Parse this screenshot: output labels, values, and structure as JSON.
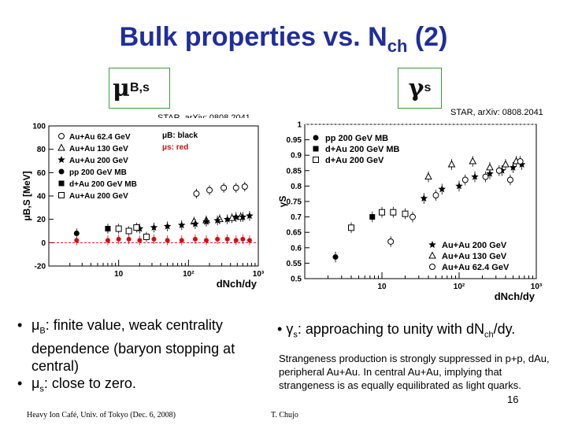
{
  "slide": {
    "title_main": "Bulk properties vs. N",
    "title_sub": "ch",
    "title_end": " (2)",
    "left_symbol": "μ",
    "left_symbol_sub": "B,s",
    "right_symbol": "γ",
    "right_symbol_sub": "s",
    "cite_left": "STAR, arXiv: 0808.2041",
    "cite_right": "STAR, arXiv: 0808.2041",
    "bullet1_sym": "μ",
    "bullet1_sub": "B",
    "bullet1_text": ": finite value, weak centrality dependence (baryon stopping at central)",
    "bullet2_sym": "μ",
    "bullet2_sub": "s",
    "bullet2_text": ": close to zero.",
    "right_bullet_sym": "γ",
    "right_bullet_sub": "s",
    "right_bullet_text": ": approaching to unity with dN",
    "right_bullet_sub2": "ch",
    "right_bullet_end": "/dy.",
    "note": "Strangeness production is strongly suppressed in p+p, dAu, peripheral Au+Au. In central Au+Au, implying that strangeness is as equally equilibrated as light quarks.",
    "page_number": "16",
    "footer_left": "Heavy Ion Café, Univ. of Tokyo (Dec. 6, 2008)",
    "footer_right": "T. Chujo"
  },
  "chart_data": [
    {
      "type": "scatter",
      "ylabel": "μB,S [MeV]",
      "xlabel": "dNch/dy",
      "xscale": "log",
      "xlim": [
        1,
        1000
      ],
      "ylim": [
        -20,
        100
      ],
      "yticks": [
        -20,
        0,
        20,
        40,
        60,
        80,
        100
      ],
      "xtick_labels": [
        "10",
        "10²",
        "10³"
      ],
      "legend": [
        "Au+Au 62.4 GeV",
        "Au+Au 130 GeV",
        "Au+Au 200 GeV",
        "pp 200 GeV MB",
        "d+Au 200 GeV MB",
        "Au+Au 200 GeV"
      ],
      "legend_placement": "top-left",
      "annotation_black": "μB: black",
      "annotation_red": "μs: red",
      "series": [
        {
          "name": "Au+Au 62.4 GeV",
          "marker": "open-circle",
          "x": [
            130,
            200,
            320,
            480,
            640
          ],
          "y": [
            42,
            45,
            47,
            47,
            48
          ]
        },
        {
          "name": "Au+Au 130 GeV",
          "marker": "open-triangle",
          "x": [
            120,
            180,
            280,
            420,
            560
          ],
          "y": [
            18,
            19,
            20,
            21,
            22
          ]
        },
        {
          "name": "Au+Au 200 GeV",
          "marker": "filled-star",
          "x": [
            20,
            32,
            50,
            80,
            125,
            180,
            260,
            360,
            480,
            600,
            750
          ],
          "y": [
            12,
            13,
            14,
            15,
            16,
            18,
            19,
            20,
            22,
            22,
            23
          ]
        },
        {
          "name": "pp 200 GeV MB",
          "marker": "filled-circle",
          "x": [
            2.5
          ],
          "y": [
            8
          ]
        },
        {
          "name": "d+Au 200 GeV MB",
          "marker": "filled-square",
          "x": [
            7
          ],
          "y": [
            12
          ]
        },
        {
          "name": "d+Au 200 GeV",
          "marker": "open-square",
          "x": [
            10,
            14,
            18,
            25
          ],
          "y": [
            12,
            10,
            13,
            5
          ]
        },
        {
          "name": "μs",
          "marker": "red",
          "x": [
            2.5,
            7,
            10,
            14,
            20,
            32,
            50,
            80,
            125,
            180,
            260,
            360,
            480,
            600,
            750
          ],
          "y": [
            2,
            2,
            3,
            3,
            2,
            3,
            2,
            2,
            3,
            2,
            3,
            3,
            2,
            3,
            2
          ]
        }
      ]
    },
    {
      "type": "scatter",
      "ylabel": "γS",
      "xlabel": "dNch/dy",
      "xscale": "log",
      "xlim": [
        1,
        1000
      ],
      "ylim": [
        0.5,
        1.0
      ],
      "yticks": [
        0.5,
        0.55,
        0.6,
        0.65,
        0.7,
        0.75,
        0.8,
        0.85,
        0.9,
        0.95,
        1
      ],
      "xtick_labels": [
        "10",
        "10²",
        "10³"
      ],
      "legend_top": [
        "pp 200 GeV MB",
        "d+Au 200 GeV MB",
        "d+Au 200 GeV"
      ],
      "legend_bottom": [
        "Au+Au 200 GeV",
        "Au+Au 130 GeV",
        "Au+Au 62.4 GeV"
      ],
      "legend_placement": "top-left / bottom-right",
      "series": [
        {
          "name": "pp 200 GeV MB",
          "marker": "filled-circle",
          "x": [
            2.5
          ],
          "y": [
            0.57
          ]
        },
        {
          "name": "d+Au 200 GeV MB",
          "marker": "filled-square",
          "x": [
            7.5
          ],
          "y": [
            0.7
          ]
        },
        {
          "name": "d+Au 200 GeV",
          "marker": "open-square",
          "x": [
            4,
            10,
            14,
            20
          ],
          "y": [
            0.665,
            0.715,
            0.715,
            0.71
          ]
        },
        {
          "name": "Au+Au 200 GeV",
          "marker": "filled-star",
          "x": [
            35,
            60,
            100,
            160,
            250,
            360,
            500,
            650
          ],
          "y": [
            0.76,
            0.79,
            0.8,
            0.83,
            0.84,
            0.85,
            0.86,
            0.87
          ]
        },
        {
          "name": "Au+Au 130 GeV",
          "marker": "open-triangle",
          "x": [
            40,
            80,
            150,
            250,
            400,
            550
          ],
          "y": [
            0.83,
            0.87,
            0.88,
            0.86,
            0.87,
            0.88
          ]
        },
        {
          "name": "Au+Au 62.4 GeV",
          "marker": "open-circle",
          "x": [
            13,
            25,
            50,
            120,
            220,
            330,
            460,
            620
          ],
          "y": [
            0.62,
            0.7,
            0.77,
            0.82,
            0.83,
            0.85,
            0.82,
            0.88
          ]
        }
      ]
    }
  ]
}
